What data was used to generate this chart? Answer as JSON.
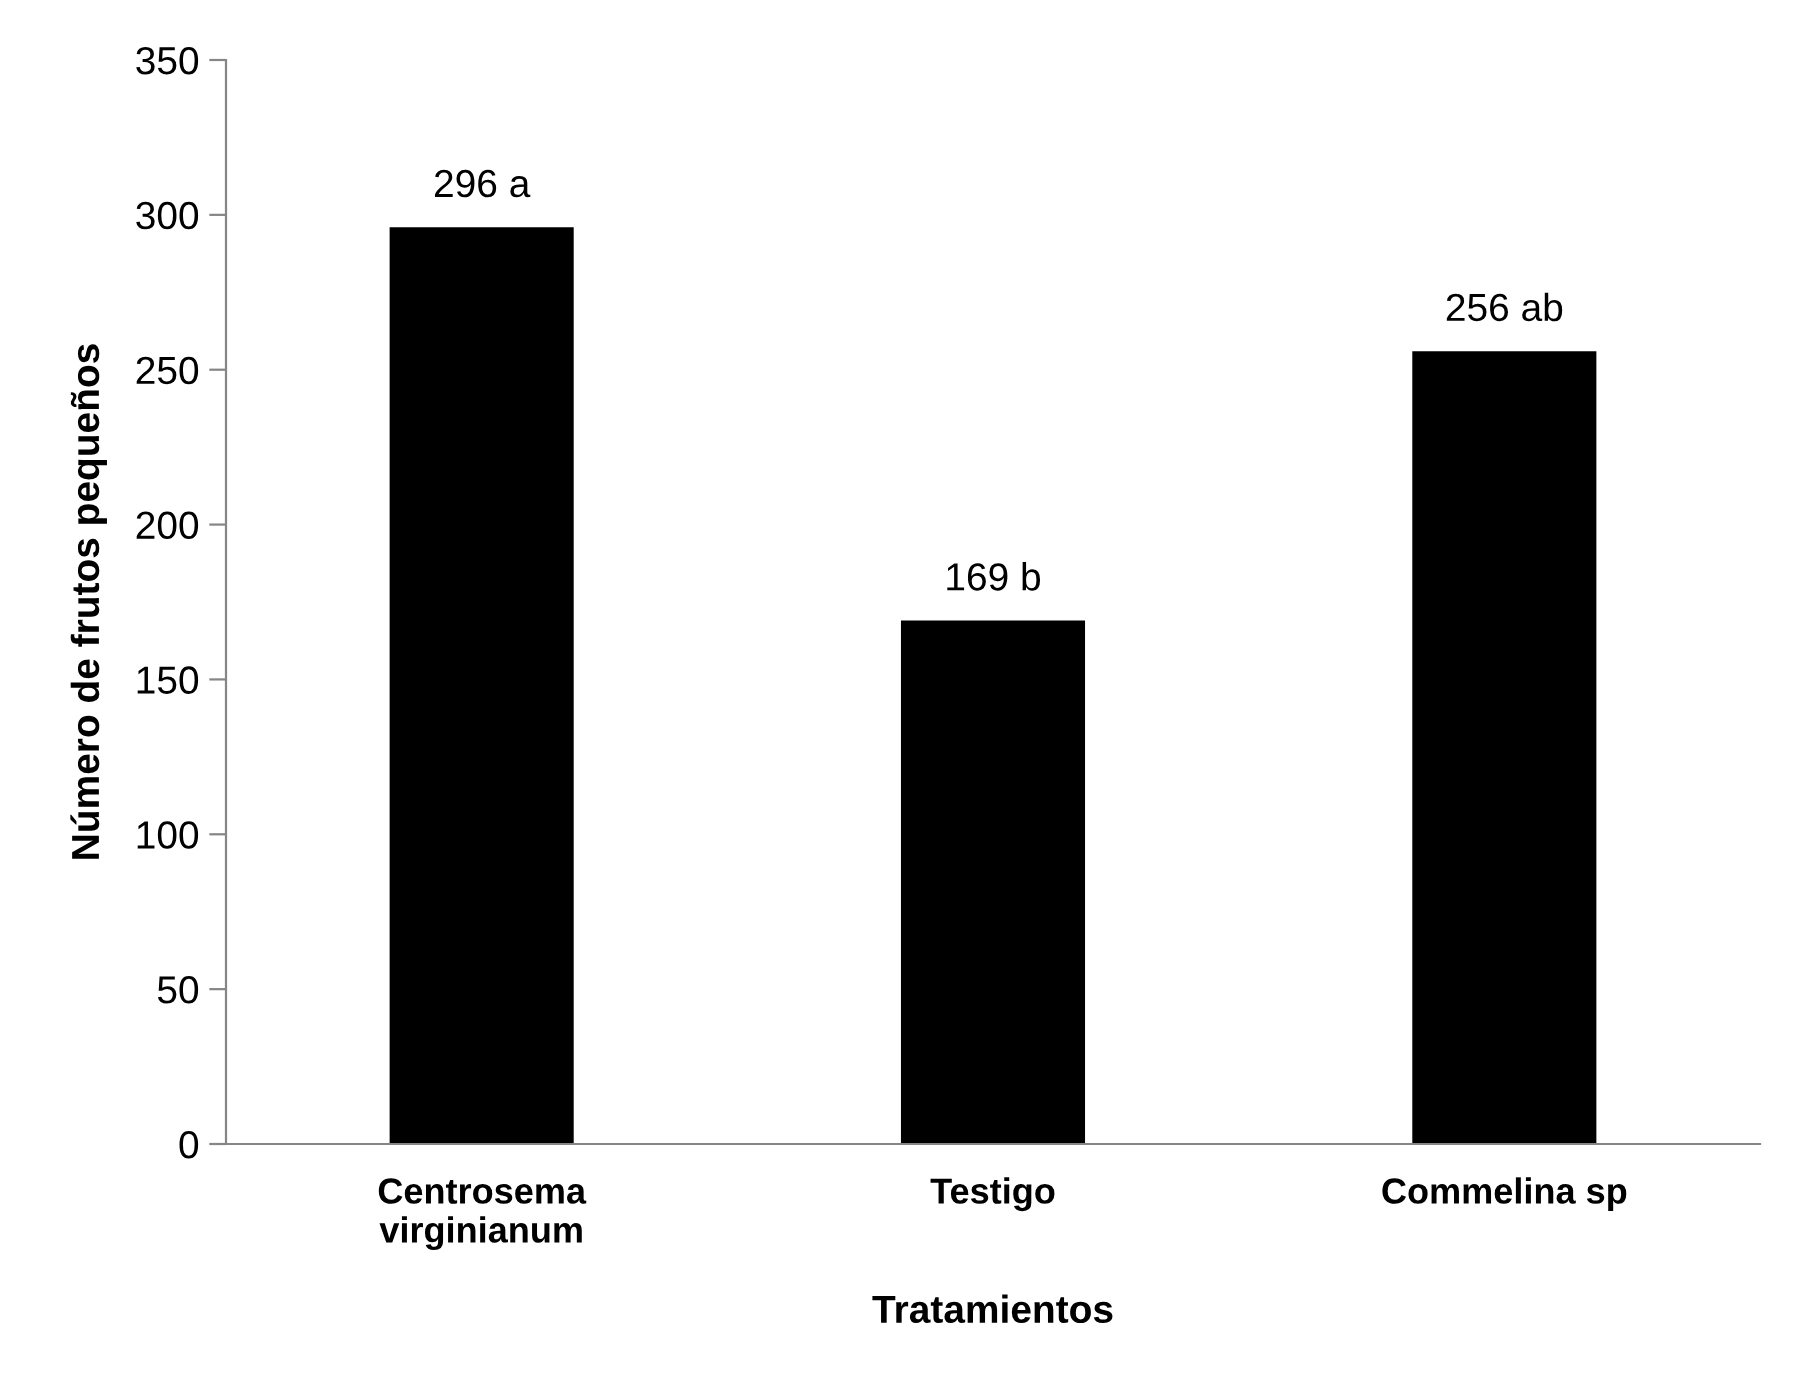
{
  "chart_data": {
    "type": "bar",
    "xlabel": "Tratamientos",
    "ylabel": "Número de frutos pequeños",
    "categories": [
      "Centrosema\nvirginianum",
      "Testigo",
      "Commelina sp"
    ],
    "values": [
      296,
      169,
      256
    ],
    "color": "#000000",
    "value_labels": [
      "296 a",
      "169 b",
      "256 ab"
    ],
    "ylim": [
      0,
      350
    ],
    "yticks": [
      0,
      50,
      100,
      150,
      200,
      250,
      300,
      350
    ],
    "grid": false,
    "legend": false
  }
}
